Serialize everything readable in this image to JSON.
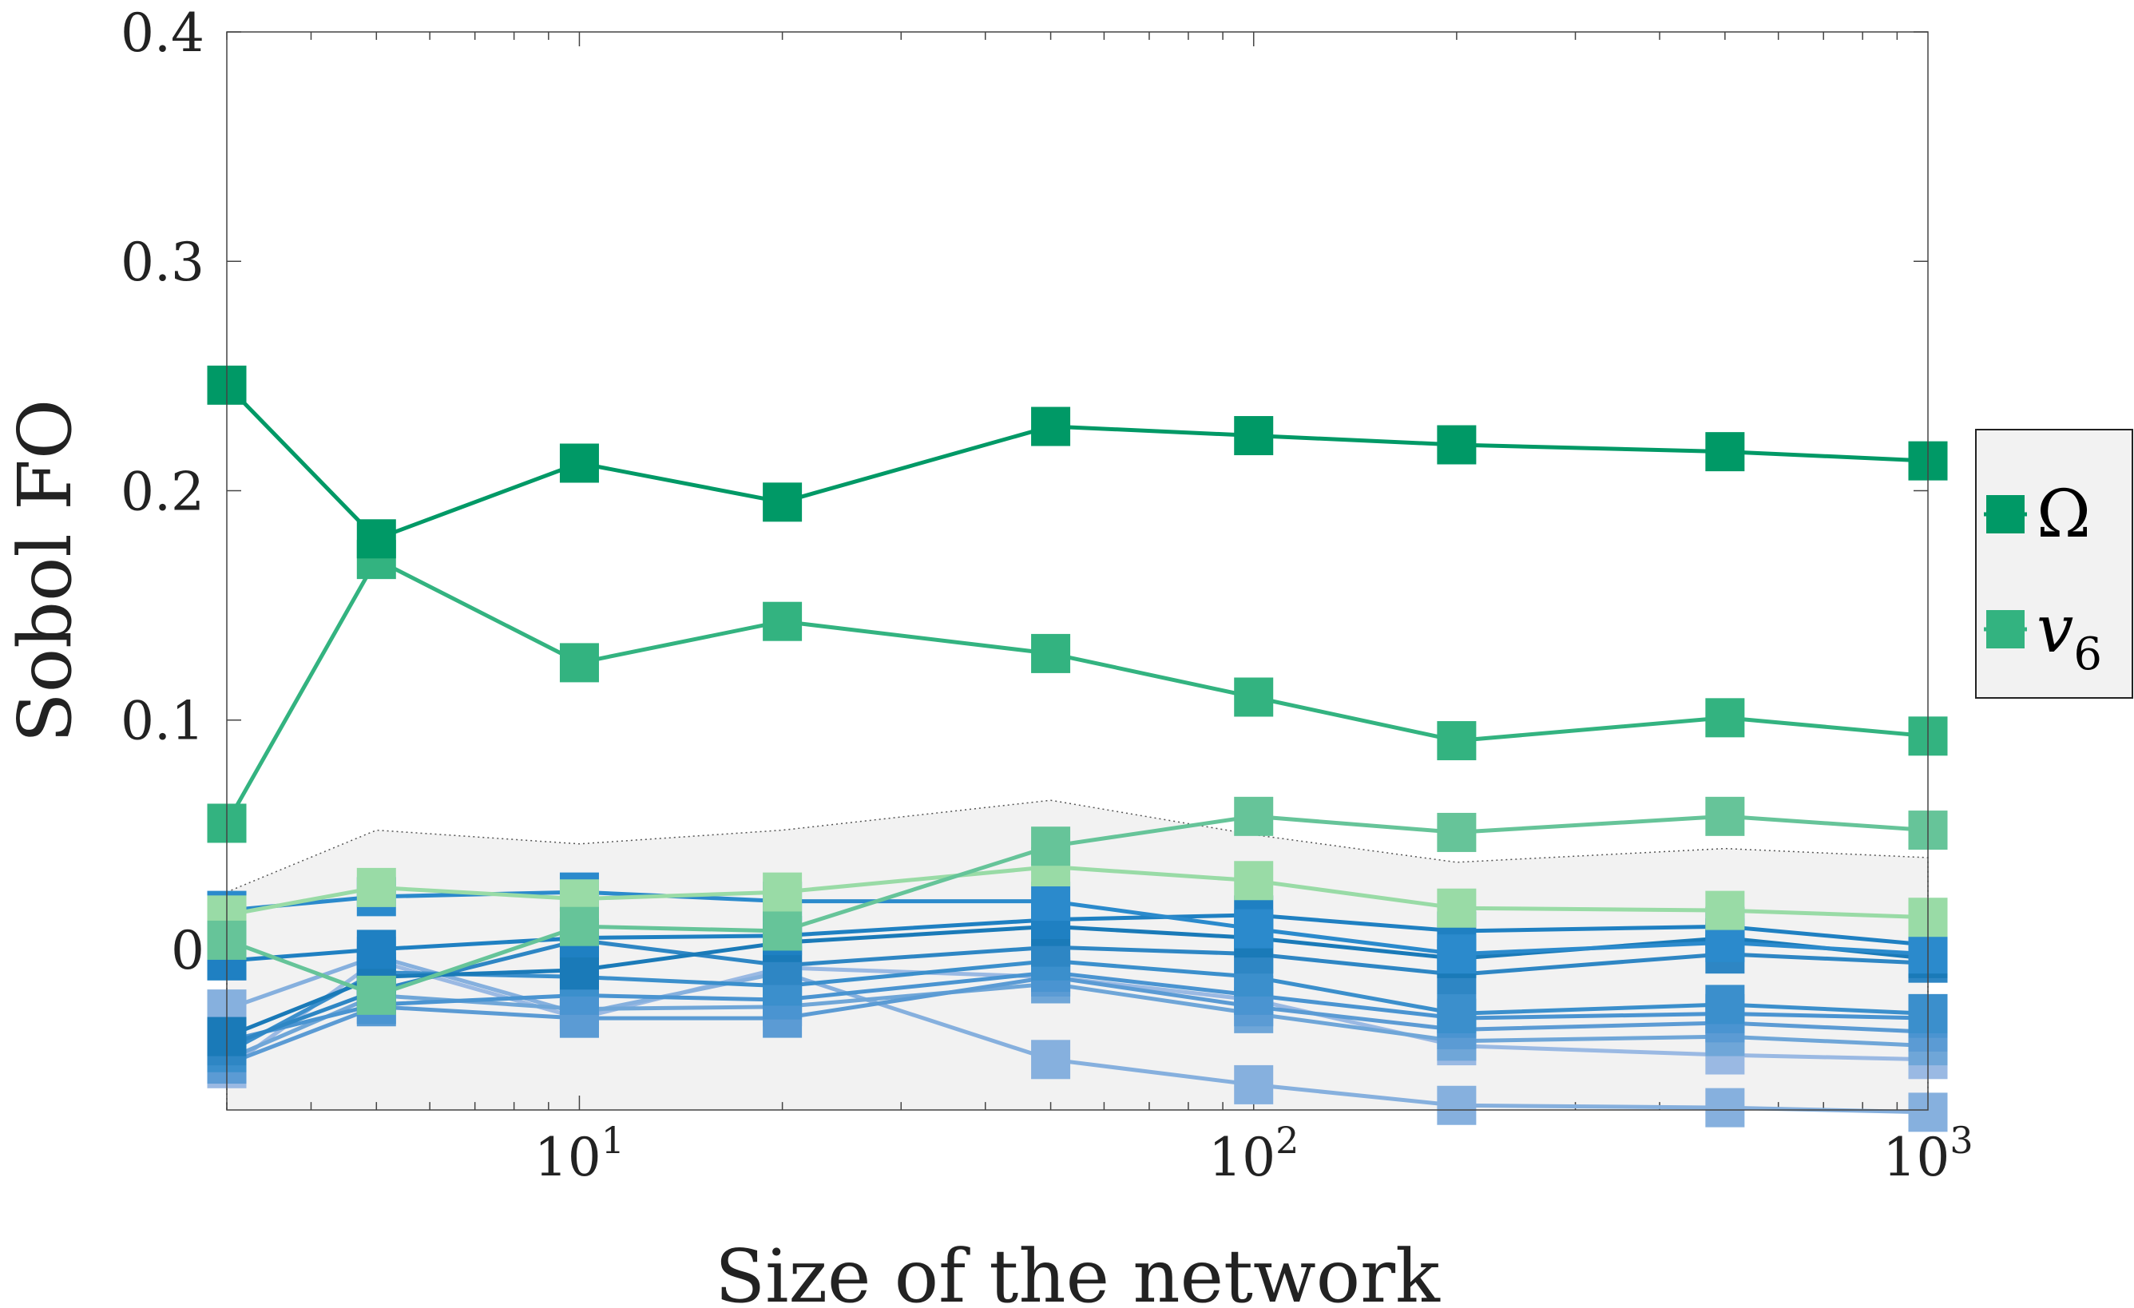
{
  "chart_data": {
    "type": "line",
    "xlabel": "Size of the network",
    "ylabel": "Sobol FO",
    "xscale": "log",
    "xlim": [
      3,
      1000
    ],
    "ylim": [
      -0.07,
      0.4
    ],
    "x": [
      3,
      5,
      10,
      20,
      50,
      100,
      200,
      500,
      1000
    ],
    "y_ticks": [
      {
        "value": 0,
        "label": "0"
      },
      {
        "value": 0.1,
        "label": "0.1"
      },
      {
        "value": 0.2,
        "label": "0.2"
      },
      {
        "value": 0.3,
        "label": "0.3"
      },
      {
        "value": 0.4,
        "label": "0.4"
      }
    ],
    "x_ticks": [
      {
        "value": 10,
        "base": "10",
        "exp": "1"
      },
      {
        "value": 100,
        "base": "10",
        "exp": "2"
      },
      {
        "value": 1000,
        "base": "10",
        "exp": "3"
      }
    ],
    "legend": {
      "placement": "right",
      "entries": [
        {
          "name": "Ω",
          "color": "#009966"
        },
        {
          "name": "v",
          "sub": "6",
          "color": "#33b380"
        }
      ]
    },
    "noise_band": {
      "upper": [
        0.025,
        0.052,
        0.046,
        0.052,
        0.065,
        0.05,
        0.038,
        0.044,
        0.04
      ],
      "lower": [
        -0.07,
        -0.07,
        -0.07,
        -0.07,
        -0.07,
        -0.07,
        -0.07,
        -0.07,
        -0.07
      ],
      "fill": "#f2f2f2",
      "edge": "#555555"
    },
    "series": [
      {
        "name": "Ω",
        "color": "#009966",
        "values": [
          0.246,
          0.179,
          0.212,
          0.195,
          0.228,
          0.224,
          0.22,
          0.217,
          0.213
        ]
      },
      {
        "name": "v6",
        "color": "#33b380",
        "values": [
          0.055,
          0.17,
          0.125,
          0.143,
          0.129,
          0.11,
          0.091,
          0.101,
          0.093
        ]
      },
      {
        "color": "#66c499",
        "values": [
          0.004,
          -0.02,
          0.01,
          0.008,
          0.045,
          0.058,
          0.051,
          0.058,
          0.052
        ]
      },
      {
        "color": "#99dba6",
        "values": [
          0.015,
          0.027,
          0.022,
          0.025,
          0.036,
          0.03,
          0.018,
          0.017,
          0.014
        ]
      },
      {
        "color": "#2b8acc",
        "values": [
          0.017,
          0.023,
          0.025,
          0.021,
          0.021,
          0.009,
          -0.002,
          0.003,
          -0.002
        ]
      },
      {
        "color": "#1f80c2",
        "values": [
          -0.005,
          0.0,
          0.005,
          0.006,
          0.013,
          0.015,
          0.008,
          0.01,
          0.002
        ]
      },
      {
        "color": "#1a7ab8",
        "values": [
          -0.038,
          -0.012,
          -0.009,
          0.003,
          0.01,
          0.005,
          -0.004,
          0.005,
          -0.004
        ]
      },
      {
        "color": "#2e86c4",
        "values": [
          -0.042,
          -0.018,
          0.004,
          -0.007,
          0.001,
          -0.002,
          -0.011,
          -0.002,
          -0.006
        ]
      },
      {
        "color": "#3b8fcc",
        "values": [
          -0.045,
          -0.01,
          -0.012,
          -0.016,
          -0.005,
          -0.012,
          -0.028,
          -0.024,
          -0.028
        ]
      },
      {
        "color": "#4a94d1",
        "values": [
          -0.04,
          -0.024,
          -0.02,
          -0.022,
          -0.01,
          -0.02,
          -0.03,
          -0.028,
          -0.03
        ]
      },
      {
        "color": "#5b9bd4",
        "values": [
          -0.05,
          -0.025,
          -0.03,
          -0.03,
          -0.012,
          -0.025,
          -0.035,
          -0.032,
          -0.036
        ]
      },
      {
        "color": "#6fa6d8",
        "values": [
          -0.048,
          -0.02,
          -0.026,
          -0.025,
          -0.015,
          -0.028,
          -0.04,
          -0.038,
          -0.042
        ]
      },
      {
        "color": "#86b0de",
        "values": [
          -0.026,
          -0.003,
          -0.028,
          -0.01,
          -0.048,
          -0.059,
          -0.068,
          -0.069,
          -0.071
        ]
      },
      {
        "color": "#9ab9e3",
        "values": [
          -0.052,
          -0.005,
          -0.03,
          -0.008,
          -0.012,
          -0.022,
          -0.042,
          -0.046,
          -0.048
        ]
      }
    ]
  }
}
